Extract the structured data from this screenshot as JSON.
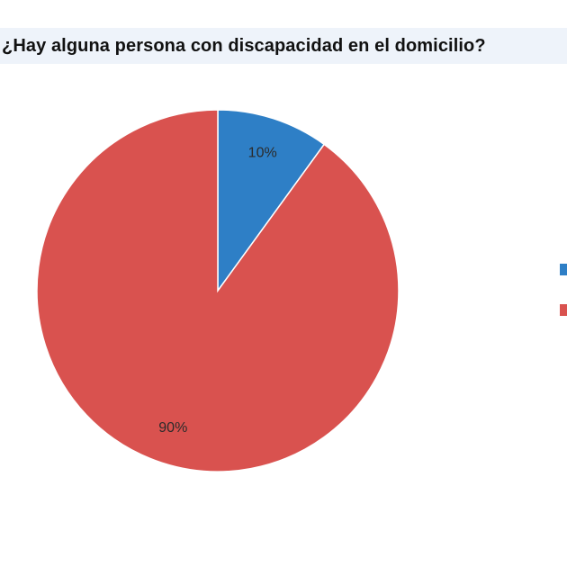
{
  "chart_data": {
    "type": "pie",
    "title": "¿Hay alguna persona con discapacidad en el domicilio?",
    "series": [
      {
        "values": [
          10,
          90
        ],
        "data_labels": [
          "10%",
          "90%"
        ]
      }
    ],
    "colors": [
      "#2e7fc6",
      "#d9524f"
    ],
    "start_angle_deg": 0,
    "direction": "clockwise",
    "legend_position": "right",
    "grid": false
  }
}
